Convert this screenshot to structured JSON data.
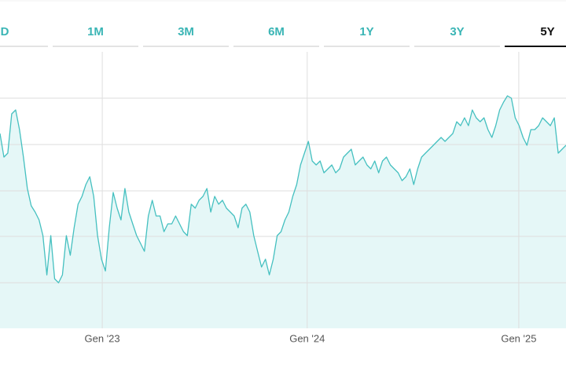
{
  "tabs": [
    "D",
    "1M",
    "3M",
    "6M",
    "1Y",
    "3Y",
    "5Y"
  ],
  "active_tab": "5Y",
  "chart_data": {
    "type": "area",
    "series": [
      {
        "color": "#45c0c0",
        "fill": "#e5f7f7",
        "values": [
          248,
          218,
          223,
          273,
          278,
          253,
          218,
          178,
          156,
          148,
          138,
          118,
          68,
          118,
          63,
          58,
          68,
          118,
          93,
          128,
          158,
          168,
          183,
          193,
          168,
          118,
          88,
          73,
          128,
          173,
          153,
          138,
          178,
          148,
          133,
          118,
          108,
          98,
          143,
          163,
          143,
          143,
          123,
          133,
          133,
          143,
          133,
          123,
          118,
          158,
          153,
          163,
          168,
          178,
          148,
          168,
          158,
          163,
          153,
          148,
          143,
          128,
          153,
          158,
          148,
          118,
          98,
          78,
          88,
          68,
          88,
          118,
          123,
          138,
          148,
          168,
          183,
          208,
          223,
          238,
          213,
          208,
          213,
          198,
          203,
          208,
          198,
          203,
          218,
          223,
          228,
          208,
          213,
          218,
          208,
          203,
          213,
          198,
          213,
          218,
          208,
          203,
          198,
          188,
          193,
          203,
          183,
          203,
          218,
          223,
          228,
          233,
          238,
          243,
          238,
          243,
          248,
          263,
          258,
          268,
          258,
          278,
          268,
          263,
          268,
          253,
          243,
          258,
          278,
          288,
          296,
          293,
          268,
          258,
          243,
          233,
          253,
          253,
          258,
          268,
          263,
          258,
          268,
          223,
          228,
          233
        ]
      }
    ],
    "xlim": [
      0,
      145
    ],
    "xticks": [
      {
        "value": 26.2,
        "label": "Gen '23"
      },
      {
        "value": 78.7,
        "label": "Gen '24"
      },
      {
        "value": 132.9,
        "label": "Gen '25"
      }
    ],
    "ylim": [
      0,
      352
    ],
    "ygrid": [
      58,
      117,
      175,
      234,
      293
    ],
    "grid": true
  }
}
